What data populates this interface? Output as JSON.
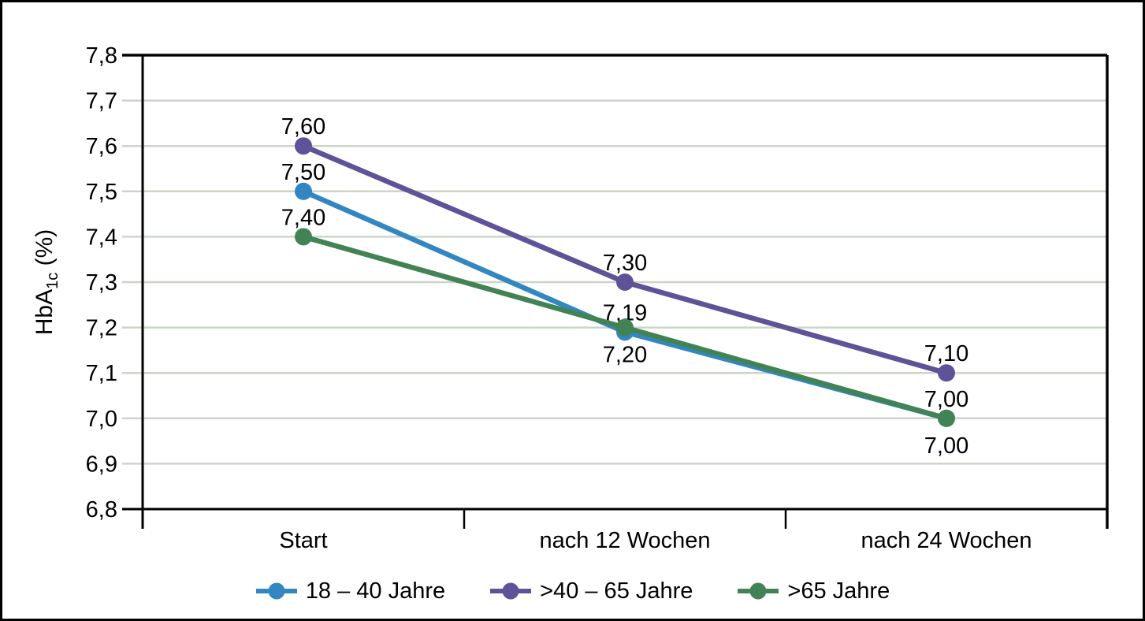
{
  "figure": {
    "background": "#ffffff",
    "border_color": "#000000"
  },
  "chart_data": {
    "type": "line",
    "title": "",
    "ylabel": {
      "main": "HbA",
      "sub": "1c",
      "suffix": " (%)"
    },
    "categories": [
      "Start",
      "nach 12 Wochen",
      "nach 24 Wochen"
    ],
    "series": [
      {
        "name": "18 – 40 Jahre",
        "color": "#3287C1",
        "values": [
          7.5,
          7.19,
          7.0
        ],
        "labels": [
          "7,50",
          "7,19",
          "7,00"
        ],
        "label_pos": [
          "above",
          "above",
          "below"
        ]
      },
      {
        "name": ">40 – 65 Jahre",
        "color": "#5F5299",
        "values": [
          7.6,
          7.3,
          7.1
        ],
        "labels": [
          "7,60",
          "7,30",
          "7,10"
        ],
        "label_pos": [
          "above",
          "above",
          "above"
        ]
      },
      {
        "name": ">65 Jahre",
        "color": "#428355",
        "values": [
          7.4,
          7.2,
          7.0
        ],
        "labels": [
          "7,40",
          "7,20",
          "7,00"
        ],
        "label_pos": [
          "above",
          "below",
          "above"
        ]
      }
    ],
    "yaxis": {
      "min": 6.8,
      "max": 7.8,
      "step": 0.1,
      "tick_labels": [
        "6,8",
        "6,9",
        "7,0",
        "7,1",
        "7,2",
        "7,3",
        "7,4",
        "7,5",
        "7,6",
        "7,7",
        "7,8"
      ]
    },
    "grid": {
      "show": true,
      "color": "#CCD5C8"
    },
    "axis_color": "#000000",
    "legend": {
      "position": "bottom",
      "marker": "line-dot"
    }
  }
}
